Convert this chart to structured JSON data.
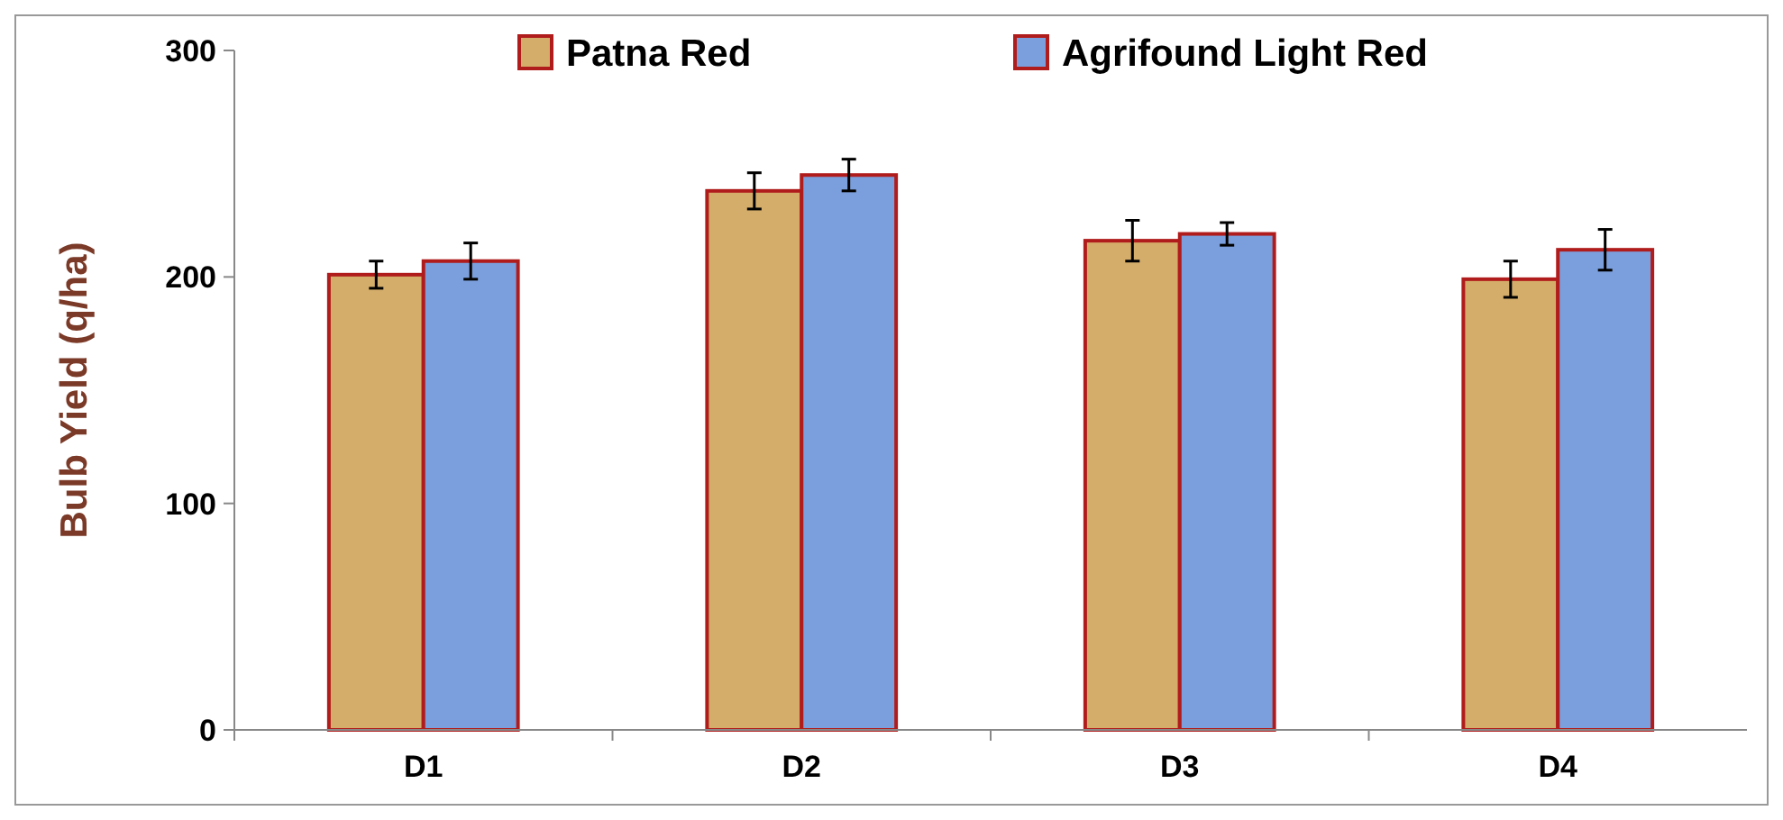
{
  "chart_data": {
    "type": "bar",
    "ylabel": "Bulb Yield (q/ha)",
    "categories": [
      "D1",
      "D2",
      "D3",
      "D4"
    ],
    "series": [
      {
        "name": "Patna Red",
        "color": "#d4ad6a",
        "values": [
          201,
          238,
          216,
          199
        ],
        "errors": [
          6,
          8,
          9,
          8
        ]
      },
      {
        "name": "Agrifound Light Red",
        "color": "#7b9fdc",
        "values": [
          207,
          245,
          219,
          212
        ],
        "errors": [
          8,
          7,
          5,
          9
        ]
      }
    ],
    "ylim": [
      0,
      300
    ],
    "yticks": [
      0,
      100,
      200,
      300
    ],
    "grid": false,
    "legend": "top"
  }
}
